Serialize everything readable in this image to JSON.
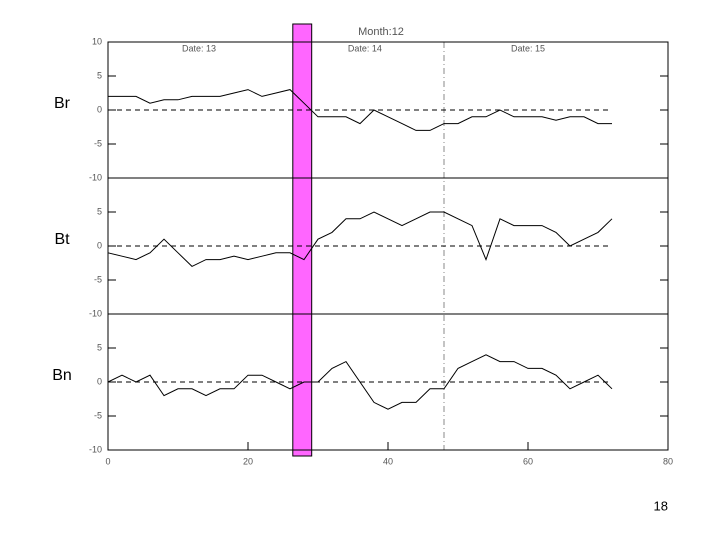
{
  "chart_data": [
    {
      "type": "line",
      "title": "Month:12",
      "label": "Br",
      "annotations": [
        {
          "text": "Date: 13",
          "x": 13
        },
        {
          "text": "Date: 14",
          "x": 36.7
        },
        {
          "text": "Date: 15",
          "x": 60
        }
      ],
      "x": [
        0,
        2,
        4,
        6,
        8,
        10,
        12,
        14,
        16,
        18,
        20,
        22,
        24,
        26,
        28,
        30,
        32,
        34,
        36,
        38,
        40,
        42,
        44,
        46,
        48,
        50,
        52,
        54,
        56,
        58,
        60,
        62,
        64,
        66,
        68,
        70,
        72
      ],
      "values": [
        2,
        2,
        2,
        1,
        1.5,
        1.5,
        2,
        2,
        2,
        2.5,
        3,
        2,
        2.5,
        3,
        1,
        -1,
        -1,
        -1,
        -2,
        0,
        -1,
        -2,
        -3,
        -3,
        -2,
        -2,
        -1,
        -1,
        0,
        -1,
        -1,
        -1,
        -1.5,
        -1,
        -1,
        -2,
        -2
      ],
      "color": "#000000",
      "reference_y": 0,
      "xlim": [
        0,
        80
      ],
      "ylim": [
        -10,
        10
      ],
      "yticks": [
        -10,
        -5,
        0,
        5,
        10
      ]
    },
    {
      "type": "line",
      "label": "Bt",
      "x": [
        0,
        2,
        4,
        6,
        8,
        10,
        12,
        14,
        16,
        18,
        20,
        22,
        24,
        26,
        28,
        30,
        32,
        34,
        36,
        38,
        40,
        42,
        44,
        46,
        48,
        50,
        52,
        54,
        56,
        58,
        60,
        62,
        64,
        66,
        68,
        70,
        72
      ],
      "values": [
        -1,
        -1.5,
        -2,
        -1,
        1,
        -1,
        -3,
        -2,
        -2,
        -1.5,
        -2,
        -1.5,
        -1,
        -1,
        -2,
        1,
        2,
        4,
        4,
        5,
        4,
        3,
        4,
        5,
        5,
        4,
        3,
        -2,
        4,
        3,
        3,
        3,
        2,
        0,
        1,
        2,
        4
      ],
      "color": "#000000",
      "reference_y": 0,
      "xlim": [
        0,
        80
      ],
      "ylim": [
        -10,
        10
      ],
      "yticks": [
        -10,
        -5,
        0,
        5
      ]
    },
    {
      "type": "line",
      "label": "Bn",
      "x": [
        0,
        2,
        4,
        6,
        8,
        10,
        12,
        14,
        16,
        18,
        20,
        22,
        24,
        26,
        28,
        30,
        32,
        34,
        36,
        38,
        40,
        42,
        44,
        46,
        48,
        50,
        52,
        54,
        56,
        58,
        60,
        62,
        64,
        66,
        68,
        70,
        72
      ],
      "values": [
        0,
        1,
        0,
        1,
        -2,
        -1,
        -1,
        -2,
        -1,
        -1,
        1,
        1,
        0,
        -1,
        0,
        0,
        2,
        3,
        0,
        -3,
        -4,
        -3,
        -3,
        -1,
        -1,
        2,
        3,
        4,
        3,
        3,
        2,
        2,
        1,
        -1,
        0,
        1,
        -1
      ],
      "color": "#000000",
      "reference_y": 0,
      "xlim": [
        0,
        80
      ],
      "ylim": [
        -10,
        10
      ],
      "yticks": [
        -10,
        -5,
        0,
        5
      ],
      "xticks": [
        0,
        20,
        40,
        60,
        80
      ]
    }
  ],
  "overlay": {
    "vline_x": 48,
    "highlight_x": [
      26.4,
      29.1
    ],
    "highlight_color": "#ff66ff"
  },
  "page_number": "18"
}
